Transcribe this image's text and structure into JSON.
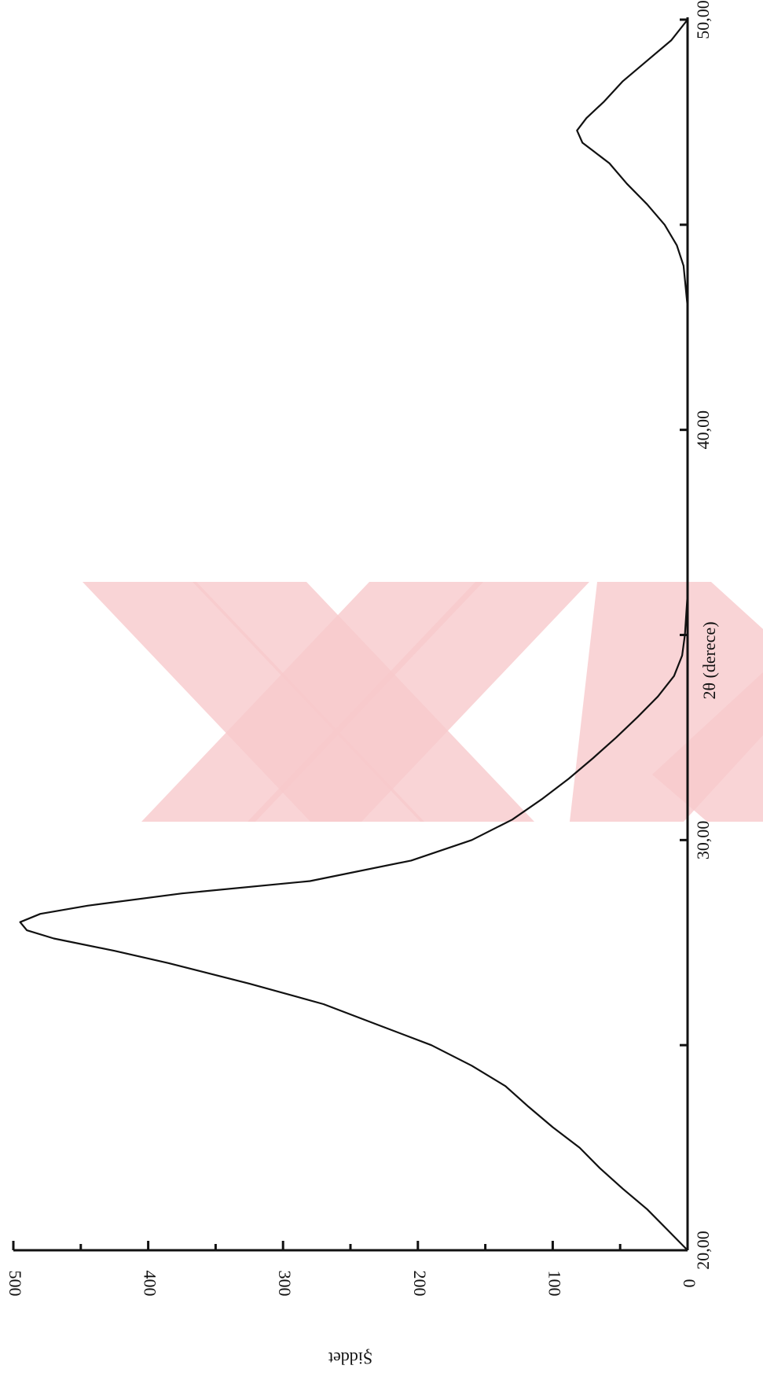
{
  "chart_data": {
    "type": "line",
    "orientation": "rotated-90-clockwise",
    "title": "",
    "xlabel": "2θ (derece)",
    "ylabel": "Şiddet",
    "xlim": [
      20,
      50
    ],
    "ylim": [
      0,
      500
    ],
    "x_ticks": [
      20,
      25,
      30,
      35,
      40,
      45,
      50
    ],
    "x_tick_labels": [
      "20,00",
      "",
      "30,00",
      "",
      "40,00",
      "",
      "50,00"
    ],
    "y_ticks": [
      0,
      100,
      200,
      300,
      400,
      500
    ],
    "y_tick_labels": [
      "0",
      "100",
      "200",
      "300",
      "400",
      "500"
    ],
    "grid": false,
    "legend": "none",
    "series": [
      {
        "x": [
          20.0,
          20.5,
          21.0,
          21.5,
          22.0,
          22.5,
          23.0,
          23.5,
          24.0,
          24.5,
          25.0,
          25.5,
          26.0,
          26.5,
          27.0,
          27.3,
          27.6,
          27.8,
          28.0,
          28.2,
          28.4,
          28.7,
          29.0,
          29.5,
          30.0,
          30.5,
          31.0,
          31.5,
          32.0,
          32.5,
          33.0,
          33.5,
          34.0,
          34.5,
          35.0,
          35.5,
          36.0,
          37.0,
          38.0,
          39.0,
          40.0,
          41.0,
          42.0,
          43.0,
          44.0,
          44.5,
          45.0,
          45.5,
          46.0,
          46.5,
          46.8,
          47.0,
          47.3,
          47.6,
          48.0,
          48.5,
          49.0,
          49.5,
          50.0
        ],
        "y": [
          0,
          15,
          30,
          48,
          65,
          80,
          100,
          118,
          135,
          160,
          190,
          230,
          270,
          325,
          385,
          425,
          470,
          490,
          495,
          480,
          445,
          375,
          280,
          205,
          160,
          130,
          108,
          88,
          70,
          53,
          37,
          22,
          10,
          4,
          2,
          1,
          0,
          0,
          0,
          0,
          0,
          0,
          0,
          0,
          3,
          8,
          17,
          30,
          45,
          58,
          70,
          78,
          82,
          75,
          62,
          48,
          30,
          12,
          0
        ]
      }
    ]
  },
  "colors": {
    "line": "#111111",
    "watermark": "#f7c9cc"
  }
}
